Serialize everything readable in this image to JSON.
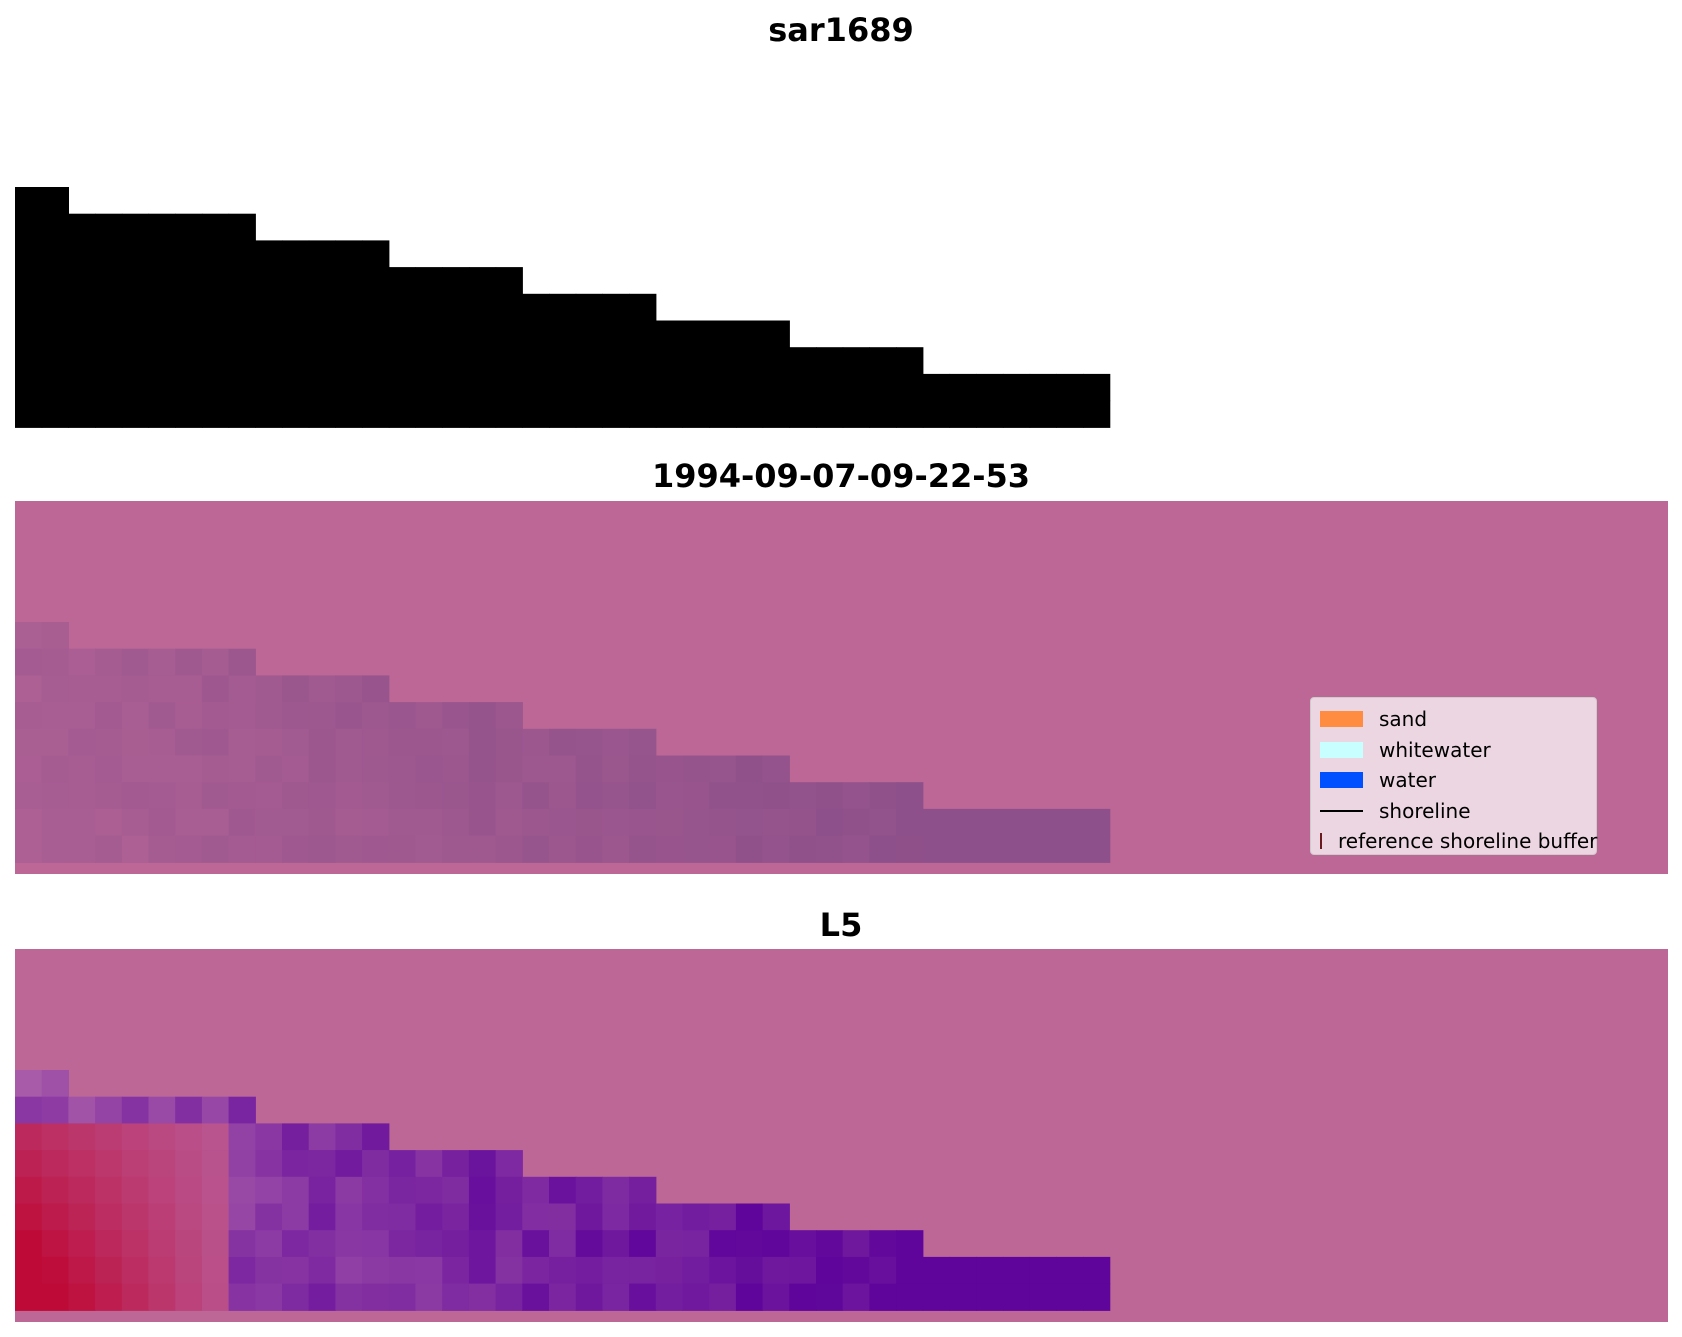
{
  "panels": [
    {
      "title": "sar1689",
      "background": "#ffffff"
    },
    {
      "title": "1994-09-07-09-22-53",
      "background": "#bc6796"
    },
    {
      "title": "L5",
      "background": "#bc6796"
    }
  ],
  "legend": {
    "items": [
      {
        "label": "sand",
        "kind": "patch",
        "color": "#ff8c40",
        "border": "#ff8c40"
      },
      {
        "label": "whitewater",
        "kind": "patch",
        "color": "#c8ffff",
        "border": "#c8ffff"
      },
      {
        "label": "water",
        "kind": "patch",
        "color": "#0050ff",
        "border": "#0050ff"
      },
      {
        "label": "shoreline",
        "kind": "line",
        "color": "#000000"
      },
      {
        "label": "reference shoreline buffer",
        "kind": "patch",
        "color": "#9a2a2e",
        "border": "#6a1a1c"
      }
    ]
  },
  "grid_data": {
    "rows": [
      {
        "start_col": 0,
        "end_col": 2
      },
      {
        "start_col": 0,
        "end_col": 9
      },
      {
        "start_col": 0,
        "end_col": 14
      },
      {
        "start_col": 0,
        "end_col": 19
      },
      {
        "start_col": 0,
        "end_col": 24
      },
      {
        "start_col": 0,
        "end_col": 29
      },
      {
        "start_col": 0,
        "end_col": 34
      },
      {
        "start_col": 0,
        "end_col": 41
      },
      {
        "start_col": 0,
        "end_col": 41
      }
    ]
  }
}
